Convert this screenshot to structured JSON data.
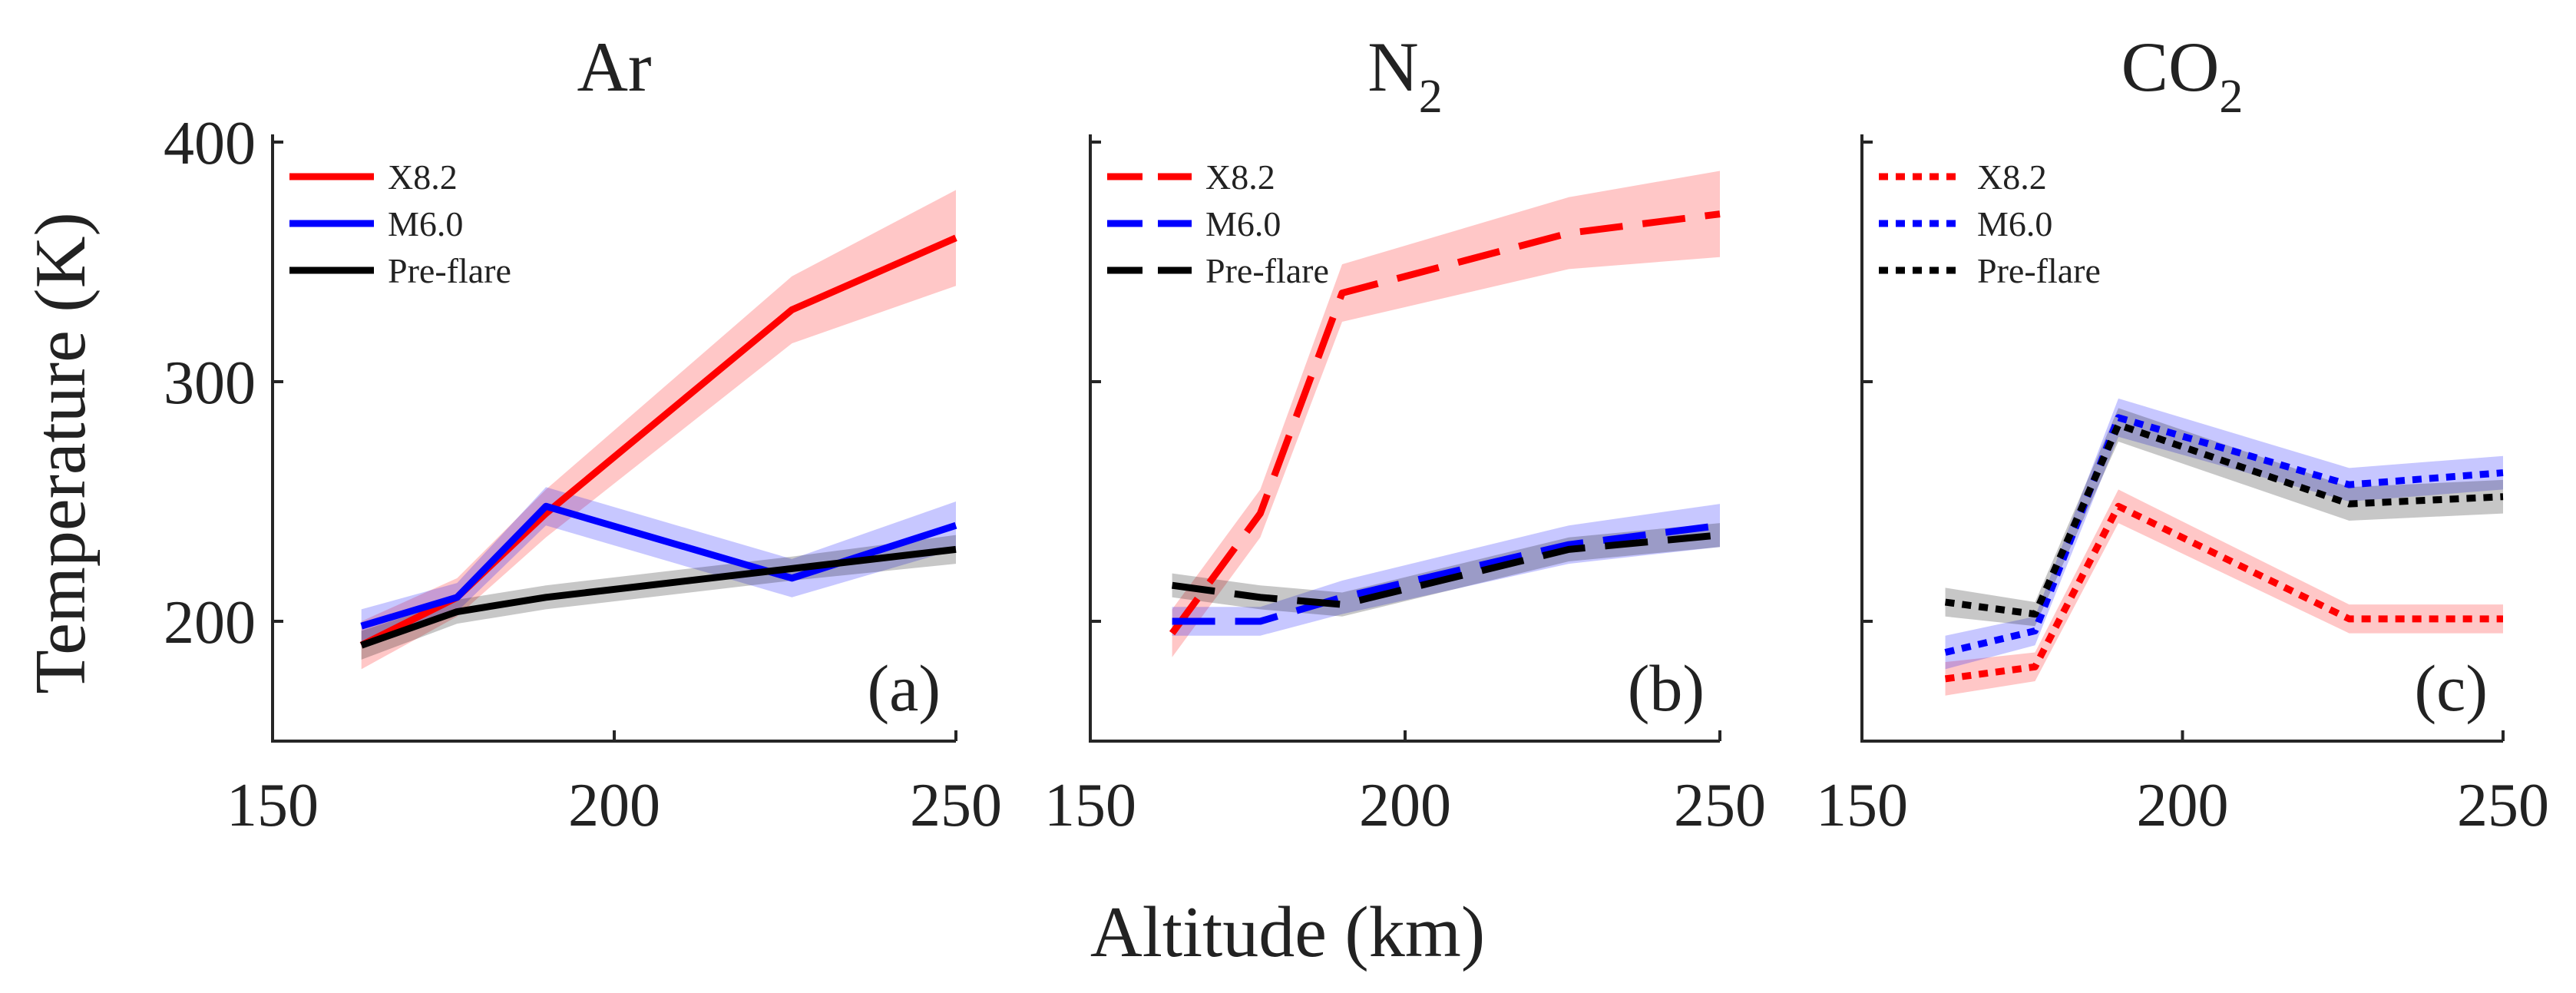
{
  "figure": {
    "ylabel": "Temperature (K)",
    "xlabel": "Altitude (km)"
  },
  "chart_data": [
    {
      "type": "line",
      "panel": "Ar",
      "title": "Ar",
      "title_subscript": "",
      "tag": "(a)",
      "xlim": [
        150,
        250
      ],
      "ylim": [
        150,
        400
      ],
      "xticks": [
        150,
        200,
        250
      ],
      "yticks": [
        200,
        300,
        400
      ],
      "y_axis_labels_shown": true,
      "line_style": "solid",
      "legend_position": "top-left",
      "series": [
        {
          "name": "X8.2",
          "color": "#ff0000",
          "x": [
            163,
            177,
            190,
            226,
            250
          ],
          "y": [
            190,
            210,
            245,
            330,
            360
          ],
          "band": [
            10,
            8,
            10,
            14,
            20
          ]
        },
        {
          "name": "M6.0",
          "color": "#0000ff",
          "x": [
            163,
            177,
            190,
            226,
            250
          ],
          "y": [
            198,
            210,
            248,
            218,
            240
          ],
          "band": [
            7,
            6,
            8,
            8,
            10
          ]
        },
        {
          "name": "Pre-flare",
          "color": "#000000",
          "x": [
            163,
            177,
            190,
            226,
            250
          ],
          "y": [
            190,
            204,
            210,
            222,
            230
          ],
          "band": [
            6,
            5,
            5,
            5,
            6
          ]
        }
      ]
    },
    {
      "type": "line",
      "panel": "N2",
      "title": "N",
      "title_subscript": "2",
      "tag": "(b)",
      "xlim": [
        150,
        250
      ],
      "ylim": [
        150,
        400
      ],
      "xticks": [
        150,
        200,
        250
      ],
      "yticks": [
        200,
        300,
        400
      ],
      "y_axis_labels_shown": false,
      "line_style": "dashed",
      "legend_position": "top-left",
      "series": [
        {
          "name": "X8.2",
          "color": "#ff0000",
          "x": [
            163,
            177,
            190,
            226,
            250
          ],
          "y": [
            195,
            245,
            337,
            362,
            370
          ],
          "band": [
            10,
            10,
            12,
            15,
            18
          ]
        },
        {
          "name": "M6.0",
          "color": "#0000ff",
          "x": [
            163,
            177,
            190,
            226,
            250
          ],
          "y": [
            200,
            200,
            210,
            232,
            240
          ],
          "band": [
            6,
            6,
            7,
            8,
            9
          ]
        },
        {
          "name": "Pre-flare",
          "color": "#000000",
          "x": [
            163,
            177,
            190,
            226,
            250
          ],
          "y": [
            215,
            210,
            207,
            230,
            236
          ],
          "band": [
            5,
            5,
            5,
            5,
            5
          ]
        }
      ]
    },
    {
      "type": "line",
      "panel": "CO2",
      "title": "CO",
      "title_subscript": "2",
      "tag": "(c)",
      "xlim": [
        150,
        250
      ],
      "ylim": [
        150,
        400
      ],
      "xticks": [
        150,
        200,
        250
      ],
      "yticks": [
        200,
        300,
        400
      ],
      "y_axis_labels_shown": false,
      "line_style": "dotted",
      "legend_position": "top-left",
      "series": [
        {
          "name": "X8.2",
          "color": "#ff0000",
          "x": [
            163,
            177,
            190,
            226,
            250
          ],
          "y": [
            176,
            181,
            248,
            201,
            201
          ],
          "band": [
            7,
            6,
            7,
            6,
            6
          ]
        },
        {
          "name": "M6.0",
          "color": "#0000ff",
          "x": [
            163,
            177,
            190,
            226,
            250
          ],
          "y": [
            187,
            196,
            285,
            257,
            262
          ],
          "band": [
            7,
            6,
            8,
            7,
            7
          ]
        },
        {
          "name": "Pre-flare",
          "color": "#000000",
          "x": [
            163,
            177,
            190,
            226,
            250
          ],
          "y": [
            208,
            203,
            282,
            249,
            252
          ],
          "band": [
            6,
            5,
            7,
            7,
            7
          ]
        }
      ]
    }
  ]
}
